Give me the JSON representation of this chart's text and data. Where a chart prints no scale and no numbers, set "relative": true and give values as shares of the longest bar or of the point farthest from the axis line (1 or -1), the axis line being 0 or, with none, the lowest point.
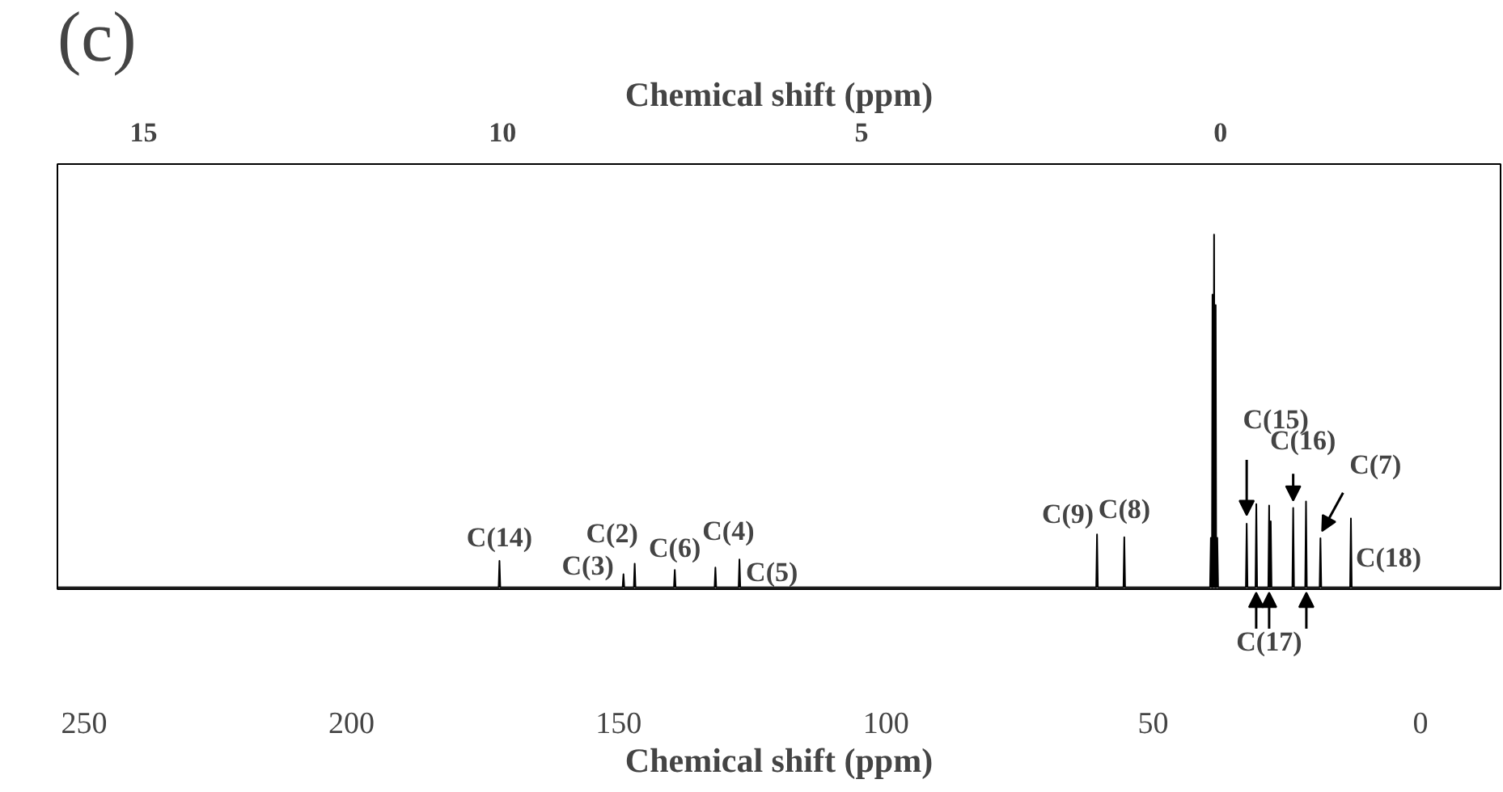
{
  "chart_data": {
    "type": "line",
    "title": "(c)",
    "xlabel": "Chemical shift (ppm)",
    "x2label": "Chemical shift (ppm)",
    "relative": true,
    "xlim": [
      255,
      -15
    ],
    "xticks": [
      250,
      200,
      150,
      100,
      50,
      0
    ],
    "x2lim": [
      16.2,
      -3.9
    ],
    "x2ticks": [
      15,
      10,
      5,
      0
    ],
    "grid": false,
    "marker": "none",
    "line_style": "solid",
    "series": [
      {
        "color": "#000000",
        "x": [
          255,
          172.45,
          172.3,
          172.15,
          149.25,
          149.1,
          148.95,
          147.15,
          147.0,
          146.85,
          139.65,
          139.5,
          139.35,
          132.05,
          131.9,
          131.75,
          127.55,
          127.4,
          127.25,
          60.65,
          60.5,
          60.35,
          55.55,
          55.4,
          55.25,
          39.35,
          39.2,
          39.05,
          39.0,
          38.9,
          38.8,
          38.75,
          38.6,
          38.45,
          38.4,
          38.3,
          38.2,
          38.15,
          38.0,
          37.85,
          32.65,
          32.5,
          32.35,
          30.85,
          30.7,
          30.55,
          28.45,
          28.3,
          28.2,
          28.1,
          28.0,
          27.85,
          23.95,
          23.8,
          23.65,
          21.55,
          21.4,
          21.25,
          18.85,
          18.7,
          18.55,
          13.15,
          13.0,
          12.85,
          -15
        ],
        "values": [
          0,
          0,
          0.075,
          0,
          0,
          0.037,
          0,
          0,
          0.067,
          0,
          0,
          0.049,
          0,
          0,
          0.056,
          0,
          0,
          0.079,
          0,
          0,
          0.15,
          0,
          0,
          0.142,
          0,
          0,
          0.14,
          0,
          0,
          0.83,
          0,
          0,
          1,
          0,
          0,
          0.8,
          0,
          0,
          0.14,
          0,
          0,
          0.18,
          0,
          0,
          0.236,
          0,
          0,
          0.232,
          0,
          0,
          0.187,
          0,
          0,
          0.225,
          0,
          0,
          0.243,
          0,
          0,
          0.139,
          0,
          0,
          0.195,
          0,
          0
        ]
      }
    ],
    "annotations": [
      {
        "text": "C(14)",
        "x": 172.3,
        "y": 0.075
      },
      {
        "text": "C(3)",
        "x": 149.1,
        "y": 0.037
      },
      {
        "text": "C(2)",
        "x": 147.0,
        "y": 0.067
      },
      {
        "text": "C(6)",
        "x": 139.5,
        "y": 0.049
      },
      {
        "text": "C(4)",
        "x": 131.9,
        "y": 0.056
      },
      {
        "text": "C(5)",
        "x": 127.4,
        "y": 0.079
      },
      {
        "text": "C(9)",
        "x": 60.5,
        "y": 0.15
      },
      {
        "text": "C(8)",
        "x": 55.4,
        "y": 0.142
      },
      {
        "text": "C(15)",
        "x": 32.5,
        "y": 0.18
      },
      {
        "text": "C(16)",
        "x": 23.8,
        "y": 0.225
      },
      {
        "text": "C(7)",
        "x": 18.7,
        "y": 0.139
      },
      {
        "text": "C(18)",
        "x": 13.0,
        "y": 0.195
      },
      {
        "text": "C(17)",
        "x": 28.3,
        "y": 0
      }
    ]
  }
}
